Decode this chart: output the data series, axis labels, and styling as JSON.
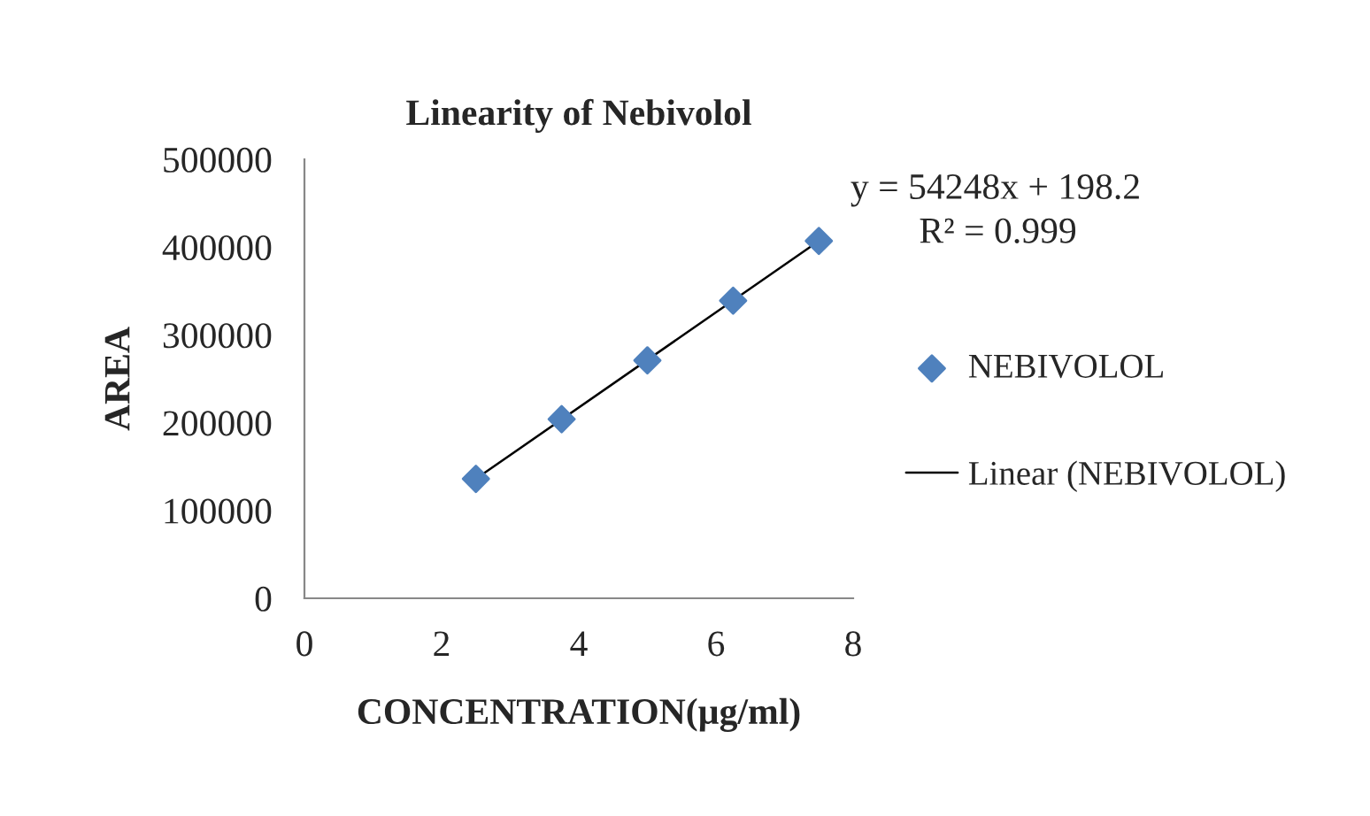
{
  "chart_data": {
    "type": "scatter",
    "title": "Linearity of Nebivolol",
    "xlabel": "CONCENTRATION(µg/ml)",
    "ylabel": "AREA",
    "xlim": [
      0,
      8
    ],
    "xticks": [
      0,
      2,
      4,
      6,
      8
    ],
    "ylim": [
      0,
      500000
    ],
    "yticks": [
      0,
      100000,
      200000,
      300000,
      400000,
      500000
    ],
    "grid": false,
    "legend": "right",
    "series": [
      {
        "name": "NEBIVOLOL",
        "type": "scatter",
        "marker": "diamond",
        "color": "#4f81bd",
        "x": [
          2.5,
          3.75,
          5,
          6.25,
          7.5
        ],
        "values": [
          136000,
          204000,
          271000,
          339000,
          407000
        ]
      },
      {
        "name": "Linear (NEBIVOLOL)",
        "type": "line",
        "marker": "none",
        "color": "#000000",
        "x": [
          2.5,
          7.5
        ],
        "values": [
          136000,
          407000
        ]
      }
    ],
    "annotations": [
      "y = 54248x + 198.2",
      "R² = 0.999"
    ]
  }
}
